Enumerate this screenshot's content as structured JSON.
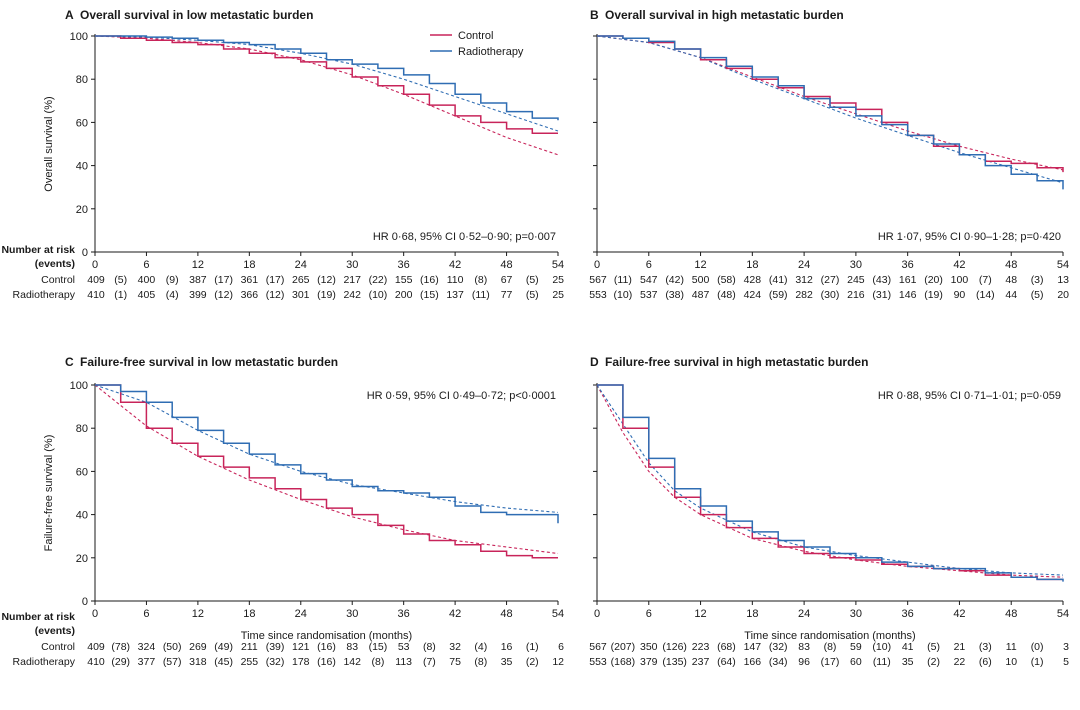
{
  "legend": {
    "entries": [
      "Control",
      "Radiotherapy"
    ]
  },
  "colors": {
    "control": "#c8245a",
    "radiotherapy": "#2f6db3",
    "fit": "#1a1a1a",
    "axis": "#1a1a1a"
  },
  "risk_labels": {
    "header": "Number at risk",
    "subheader": "(events)",
    "control": "Control",
    "radiotherapy": "Radiotherapy"
  },
  "chart_data": [
    {
      "type": "line",
      "letter": "A",
      "title": "Overall survival in low metastatic burden",
      "ylabel": "Overall survival (%)",
      "xlabel": "",
      "xlim": [
        0,
        54
      ],
      "ylim": [
        0,
        100
      ],
      "x_ticks": [
        "0",
        "6",
        "12",
        "18",
        "24",
        "30",
        "36",
        "42",
        "48",
        "54"
      ],
      "y_ticks": [
        "0",
        "20",
        "40",
        "60",
        "80",
        "100"
      ],
      "annotation": "HR 0·68, 95% CI 0·52–0·90; p=0·007",
      "annotation_pos": "bottom-right",
      "legend": "top-right",
      "series": [
        {
          "name": "Control",
          "x": [
            0,
            3,
            6,
            9,
            12,
            15,
            18,
            21,
            24,
            27,
            30,
            33,
            36,
            39,
            42,
            45,
            48,
            51,
            54
          ],
          "y": [
            100,
            99,
            98,
            97,
            96,
            94,
            92,
            90,
            88,
            85,
            81,
            77,
            73,
            68,
            63,
            60,
            57,
            55,
            55
          ]
        },
        {
          "name": "Radiotherapy",
          "x": [
            0,
            3,
            6,
            9,
            12,
            15,
            18,
            21,
            24,
            27,
            30,
            33,
            36,
            39,
            42,
            45,
            48,
            51,
            54
          ],
          "y": [
            100,
            100,
            99.5,
            99,
            98,
            97,
            96,
            94,
            92,
            89,
            87,
            85,
            82,
            78,
            73,
            69,
            65,
            62,
            61
          ]
        }
      ],
      "fits": [
        {
          "name": "Control",
          "x": [
            0,
            6,
            12,
            18,
            24,
            30,
            36,
            42,
            48,
            54
          ],
          "y": [
            100,
            99,
            97,
            94,
            89,
            82,
            73,
            63,
            53,
            45
          ]
        },
        {
          "name": "Radiotherapy",
          "x": [
            0,
            6,
            12,
            18,
            24,
            30,
            36,
            42,
            48,
            54
          ],
          "y": [
            100,
            99.5,
            98,
            96,
            92,
            87,
            80,
            72,
            64,
            56
          ]
        }
      ],
      "risk_table": {
        "control": [
          "409",
          "(5)",
          "400",
          "(9)",
          "387",
          "(17)",
          "361",
          "(17)",
          "265",
          "(12)",
          "217",
          "(22)",
          "155",
          "(16)",
          "110",
          "(8)",
          "67",
          "(5)",
          "25"
        ],
        "radiotherapy": [
          "410",
          "(1)",
          "405",
          "(4)",
          "399",
          "(12)",
          "366",
          "(12)",
          "301",
          "(19)",
          "242",
          "(10)",
          "200",
          "(15)",
          "137",
          "(11)",
          "77",
          "(5)",
          "25"
        ]
      }
    },
    {
      "type": "line",
      "letter": "B",
      "title": "Overall survival in high metastatic burden",
      "ylabel": "",
      "xlabel": "",
      "xlim": [
        0,
        54
      ],
      "ylim": [
        0,
        100
      ],
      "x_ticks": [
        "0",
        "6",
        "12",
        "18",
        "24",
        "30",
        "36",
        "42",
        "48",
        "54"
      ],
      "y_ticks": [
        "0",
        "20",
        "40",
        "60",
        "80",
        "100"
      ],
      "annotation": "HR 1·07, 95% CI 0·90–1·28; p=0·420",
      "annotation_pos": "bottom-right",
      "series": [
        {
          "name": "Control",
          "x": [
            0,
            3,
            6,
            9,
            12,
            15,
            18,
            21,
            24,
            27,
            30,
            33,
            36,
            39,
            42,
            45,
            48,
            51,
            54
          ],
          "y": [
            100,
            99,
            97,
            94,
            89,
            85,
            80,
            76,
            72,
            69,
            66,
            60,
            54,
            49,
            45,
            42,
            41,
            39,
            37
          ]
        },
        {
          "name": "Radiotherapy",
          "x": [
            0,
            3,
            6,
            9,
            12,
            15,
            18,
            21,
            24,
            27,
            30,
            33,
            36,
            39,
            42,
            45,
            48,
            51,
            54
          ],
          "y": [
            100,
            99,
            97.5,
            94,
            90,
            86,
            81,
            77,
            71,
            67,
            63,
            59,
            54,
            50,
            45,
            40,
            36,
            33,
            29
          ]
        }
      ],
      "fits": [
        {
          "name": "Control",
          "x": [
            0,
            6,
            12,
            18,
            24,
            30,
            36,
            42,
            48,
            54
          ],
          "y": [
            100,
            97,
            90,
            81,
            72,
            64,
            56,
            49,
            43,
            38
          ]
        },
        {
          "name": "Radiotherapy",
          "x": [
            0,
            6,
            12,
            18,
            24,
            30,
            36,
            42,
            48,
            54
          ],
          "y": [
            100,
            97,
            90,
            80,
            71,
            62,
            54,
            46,
            39,
            32
          ]
        }
      ],
      "risk_table": {
        "control": [
          "567",
          "(11)",
          "547",
          "(42)",
          "500",
          "(58)",
          "428",
          "(41)",
          "312",
          "(27)",
          "245",
          "(43)",
          "161",
          "(20)",
          "100",
          "(7)",
          "48",
          "(3)",
          "13"
        ],
        "radiotherapy": [
          "553",
          "(10)",
          "537",
          "(38)",
          "487",
          "(48)",
          "424",
          "(59)",
          "282",
          "(30)",
          "216",
          "(31)",
          "146",
          "(19)",
          "90",
          "(14)",
          "44",
          "(5)",
          "20"
        ]
      }
    },
    {
      "type": "line",
      "letter": "C",
      "title": "Failure-free survival in low metastatic burden",
      "ylabel": "Failure-free survival (%)",
      "xlabel": "Time since randomisation (months)",
      "xlim": [
        0,
        54
      ],
      "ylim": [
        0,
        100
      ],
      "x_ticks": [
        "0",
        "6",
        "12",
        "18",
        "24",
        "30",
        "36",
        "42",
        "48",
        "54"
      ],
      "y_ticks": [
        "0",
        "20",
        "40",
        "60",
        "80",
        "100"
      ],
      "annotation": "HR 0·59, 95% CI 0·49–0·72; p<0·0001",
      "annotation_pos": "top-right",
      "series": [
        {
          "name": "Control",
          "x": [
            0,
            3,
            6,
            9,
            12,
            15,
            18,
            21,
            24,
            27,
            30,
            33,
            36,
            39,
            42,
            45,
            48,
            51,
            54
          ],
          "y": [
            100,
            92,
            80,
            73,
            67,
            62,
            57,
            52,
            47,
            43,
            40,
            35,
            31,
            28,
            26,
            23,
            21,
            20,
            20
          ]
        },
        {
          "name": "Radiotherapy",
          "x": [
            0,
            3,
            6,
            9,
            12,
            15,
            18,
            21,
            24,
            27,
            30,
            33,
            36,
            39,
            42,
            45,
            48,
            51,
            54
          ],
          "y": [
            100,
            97,
            92,
            85,
            79,
            73,
            68,
            63,
            59,
            56,
            53,
            51,
            50,
            48,
            44,
            41,
            40,
            40,
            36
          ]
        }
      ],
      "fits": [
        {
          "name": "Control",
          "x": [
            0,
            6,
            12,
            18,
            24,
            30,
            36,
            42,
            48,
            54
          ],
          "y": [
            100,
            81,
            67,
            56,
            47,
            39,
            33,
            28,
            25,
            22
          ]
        },
        {
          "name": "Radiotherapy",
          "x": [
            0,
            6,
            12,
            18,
            24,
            30,
            36,
            42,
            48,
            54
          ],
          "y": [
            100,
            92,
            79,
            68,
            60,
            54,
            50,
            46,
            43,
            41
          ]
        }
      ],
      "risk_table": {
        "control": [
          "409",
          "(78)",
          "324",
          "(50)",
          "269",
          "(49)",
          "211",
          "(39)",
          "121",
          "(16)",
          "83",
          "(15)",
          "53",
          "(8)",
          "32",
          "(4)",
          "16",
          "(1)",
          "6"
        ],
        "radiotherapy": [
          "410",
          "(29)",
          "377",
          "(57)",
          "318",
          "(45)",
          "255",
          "(32)",
          "178",
          "(16)",
          "142",
          "(8)",
          "113",
          "(7)",
          "75",
          "(8)",
          "35",
          "(2)",
          "12"
        ]
      }
    },
    {
      "type": "line",
      "letter": "D",
      "title": "Failure-free survival in high metastatic burden",
      "ylabel": "",
      "xlabel": "Time since randomisation (months)",
      "xlim": [
        0,
        54
      ],
      "ylim": [
        0,
        100
      ],
      "x_ticks": [
        "0",
        "6",
        "12",
        "18",
        "24",
        "30",
        "36",
        "42",
        "48",
        "54"
      ],
      "y_ticks": [
        "0",
        "20",
        "40",
        "60",
        "80",
        "100"
      ],
      "annotation": "HR 0·88, 95% CI 0·71–1·01; p=0·059",
      "annotation_pos": "top-right",
      "series": [
        {
          "name": "Control",
          "x": [
            0,
            3,
            6,
            9,
            12,
            15,
            18,
            21,
            24,
            27,
            30,
            33,
            36,
            39,
            42,
            45,
            48,
            51,
            54
          ],
          "y": [
            100,
            80,
            62,
            48,
            40,
            34,
            29,
            25,
            22,
            20,
            19,
            17,
            16,
            15,
            14,
            12,
            11,
            10,
            10
          ]
        },
        {
          "name": "Radiotherapy",
          "x": [
            0,
            3,
            6,
            9,
            12,
            15,
            18,
            21,
            24,
            27,
            30,
            33,
            36,
            39,
            42,
            45,
            48,
            51,
            54
          ],
          "y": [
            100,
            85,
            66,
            52,
            44,
            37,
            32,
            28,
            25,
            22,
            20,
            18,
            16,
            15,
            15,
            13,
            11,
            10,
            9
          ]
        }
      ],
      "fits": [
        {
          "name": "Control",
          "x": [
            0,
            3,
            6,
            9,
            12,
            18,
            24,
            30,
            36,
            42,
            48,
            54
          ],
          "y": [
            100,
            78,
            60,
            48,
            40,
            29,
            23,
            19,
            16,
            14,
            12,
            11
          ]
        },
        {
          "name": "Radiotherapy",
          "x": [
            0,
            3,
            6,
            9,
            12,
            18,
            24,
            30,
            36,
            42,
            48,
            54
          ],
          "y": [
            100,
            82,
            64,
            51,
            43,
            32,
            25,
            21,
            18,
            15,
            13,
            12
          ]
        }
      ],
      "risk_table": {
        "control": [
          "567",
          "(207)",
          "350",
          "(126)",
          "223",
          "(68)",
          "147",
          "(32)",
          "83",
          "(8)",
          "59",
          "(10)",
          "41",
          "(5)",
          "21",
          "(3)",
          "11",
          "(0)",
          "3"
        ],
        "radiotherapy": [
          "553",
          "(168)",
          "379",
          "(135)",
          "237",
          "(64)",
          "166",
          "(34)",
          "96",
          "(17)",
          "60",
          "(11)",
          "35",
          "(2)",
          "22",
          "(6)",
          "10",
          "(1)",
          "5"
        ]
      }
    }
  ]
}
